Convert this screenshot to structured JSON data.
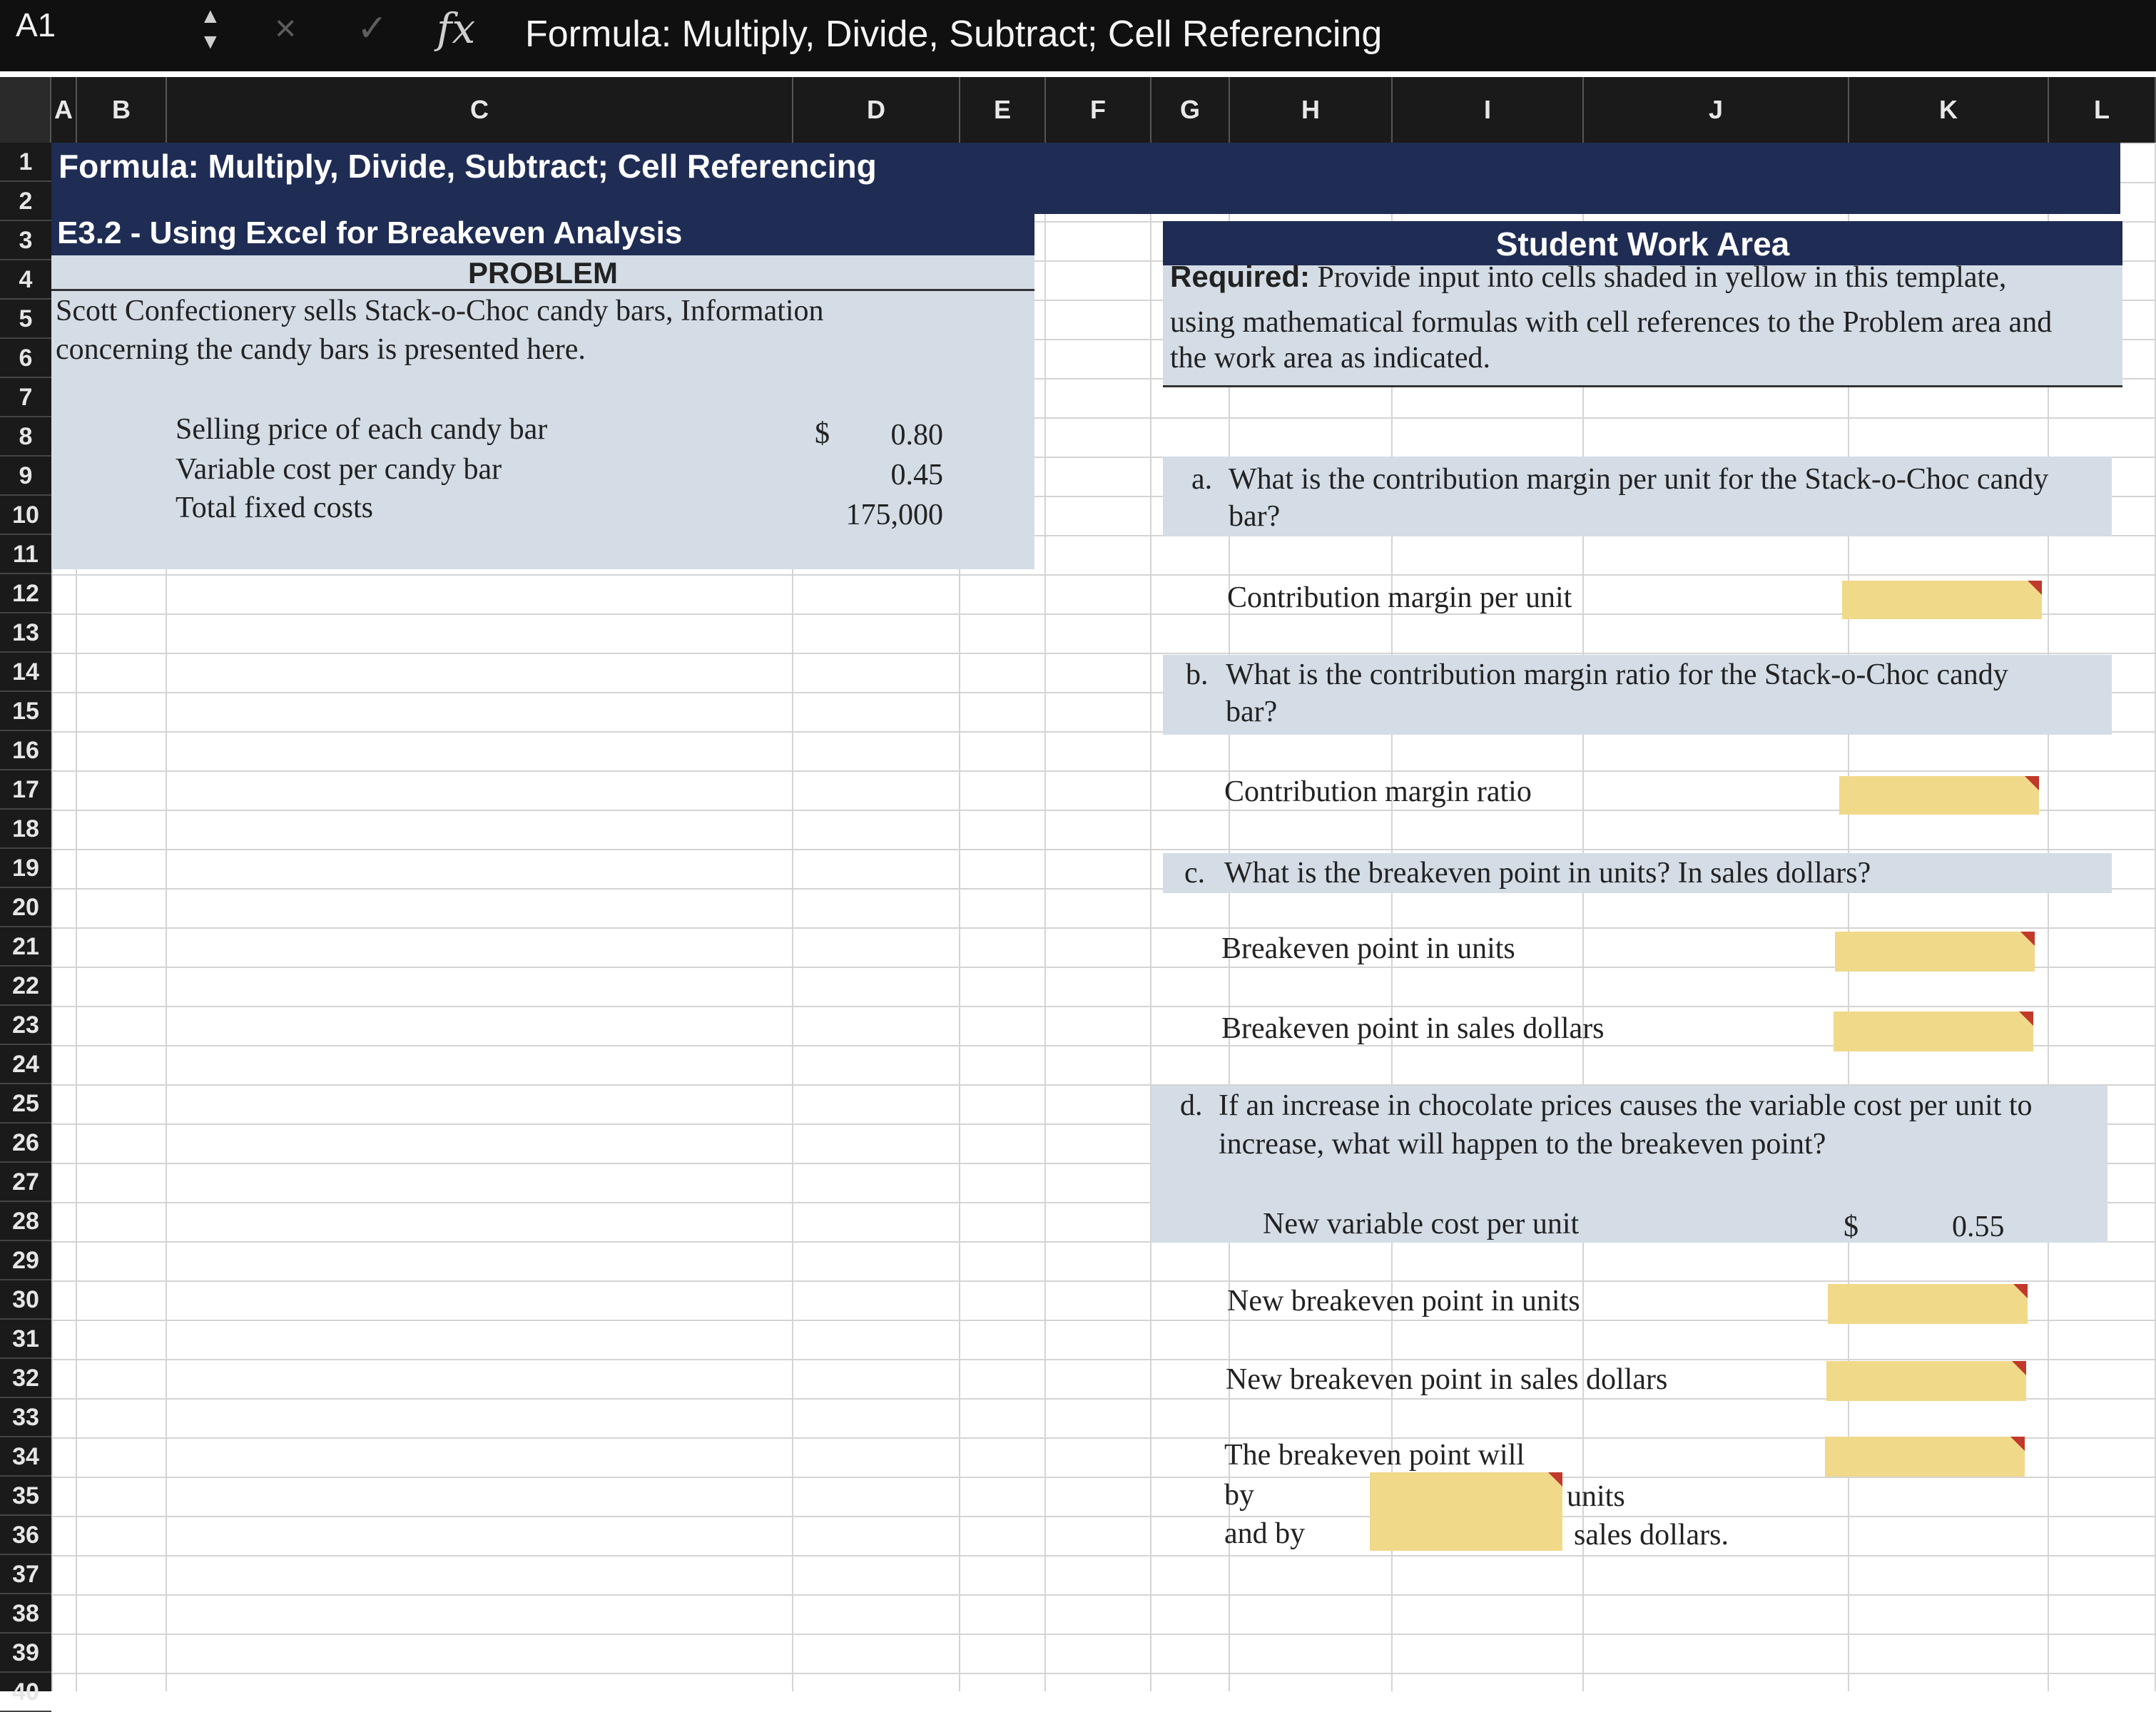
{
  "formula_bar": {
    "cell_ref": "A1",
    "cancel_icon": "×",
    "enter_icon": "✓",
    "fx_label": "fx",
    "content": "Formula: Multiply, Divide, Subtract; Cell Referencing"
  },
  "columns": [
    "A",
    "B",
    "C",
    "D",
    "E",
    "F",
    "G",
    "H",
    "I",
    "J",
    "K",
    "L"
  ],
  "rows": [
    "1",
    "2",
    "3",
    "4",
    "5",
    "6",
    "7",
    "8",
    "9",
    "10",
    "11",
    "12",
    "13",
    "14",
    "15",
    "16",
    "17",
    "18",
    "19",
    "20",
    "21",
    "22",
    "23",
    "24",
    "25",
    "26",
    "27",
    "28",
    "29",
    "30",
    "31",
    "32",
    "33",
    "34",
    "35",
    "36",
    "37",
    "38",
    "39",
    "40"
  ],
  "sheet": {
    "title": "Formula: Multiply, Divide, Subtract; Cell Referencing",
    "exercise": "E3.2 - Using Excel for Breakeven Analysis",
    "problem_label": "PROBLEM",
    "intro_line1": "Scott Confectionery sells Stack-o-Choc candy bars, Information",
    "intro_line2": "concerning the candy bars is presented here.",
    "items": [
      {
        "label": "Selling price of each candy bar",
        "currency": "$",
        "value": "0.80"
      },
      {
        "label": "Variable cost per candy bar",
        "currency": "",
        "value": "0.45"
      },
      {
        "label": "Total fixed costs",
        "currency": "",
        "value": "175,000"
      }
    ]
  },
  "work_area": {
    "header": "Student Work Area",
    "required_bold": "Required:",
    "required_line1": "Provide input into cells shaded in yellow in this template,",
    "required_line2": "using mathematical formulas with cell references to the Problem area and",
    "required_line3": "the work area as indicated.",
    "qa_letter": "a.",
    "qa_line1": "What is the contribution margin per unit for the Stack-o-Choc candy",
    "qa_line2": "bar?",
    "qa_answer_label": "Contribution margin per unit",
    "qb_letter": "b.",
    "qb_line1": "What is the contribution margin ratio for the Stack-o-Choc candy",
    "qb_line2": "bar?",
    "qb_answer_label": "Contribution margin ratio",
    "qc_letter": "c.",
    "qc_line1": "What is the breakeven point in units? In sales dollars?",
    "qc_answer1": "Breakeven point in units",
    "qc_answer2": "Breakeven point in sales dollars",
    "qd_letter": "d.",
    "qd_line1": "If an increase in chocolate prices causes the variable cost per unit to",
    "qd_line2": "increase, what will happen to the breakeven point?",
    "new_vc_label": "New variable cost per unit",
    "new_vc_currency": "$",
    "new_vc_value": "0.55",
    "new_be_units": "New breakeven point in units",
    "new_be_dollars": "New breakeven point in sales dollars",
    "will_label": "The breakeven point will",
    "by_label": "by",
    "andby_label": "and by",
    "units_label": "units",
    "sales_label": "sales dollars."
  }
}
